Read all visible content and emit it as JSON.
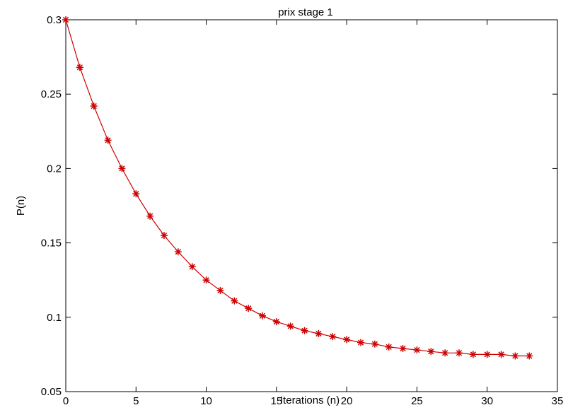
{
  "chart_data": {
    "type": "line",
    "title": "prix stage 1",
    "xlabel": "Iterations (n)",
    "ylabel": "P(n)",
    "xlim": [
      0,
      35
    ],
    "ylim": [
      0.05,
      0.3
    ],
    "xticks": [
      0,
      5,
      10,
      15,
      20,
      25,
      30,
      35
    ],
    "yticks": [
      0.05,
      0.1,
      0.15,
      0.2,
      0.25,
      0.3
    ],
    "xtick_labels": [
      "0",
      "5",
      "10",
      "15",
      "20",
      "25",
      "30",
      "35"
    ],
    "ytick_labels": [
      "0.05",
      "0.1",
      "0.15",
      "0.2",
      "0.25",
      "0.3"
    ],
    "grid": false,
    "legend": false,
    "series": [
      {
        "color": "#cc0000",
        "marker": "asterisk",
        "x": [
          0,
          1,
          2,
          3,
          4,
          5,
          6,
          7,
          8,
          9,
          10,
          11,
          12,
          13,
          14,
          15,
          16,
          17,
          18,
          19,
          20,
          21,
          22,
          23,
          24,
          25,
          26,
          27,
          28,
          29,
          30,
          31,
          32,
          33
        ],
        "y": [
          0.3,
          0.268,
          0.242,
          0.219,
          0.2,
          0.183,
          0.168,
          0.155,
          0.144,
          0.134,
          0.125,
          0.118,
          0.111,
          0.106,
          0.101,
          0.097,
          0.094,
          0.091,
          0.089,
          0.087,
          0.085,
          0.083,
          0.082,
          0.08,
          0.079,
          0.078,
          0.077,
          0.076,
          0.076,
          0.075,
          0.075,
          0.075,
          0.074,
          0.074
        ]
      }
    ]
  }
}
